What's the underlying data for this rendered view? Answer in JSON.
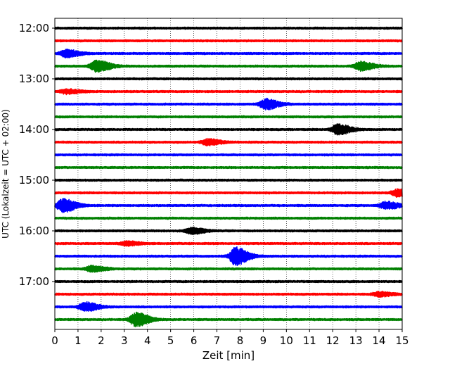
{
  "chart_data": {
    "type": "line",
    "title": "",
    "xlabel": "Zeit  [min]",
    "ylabel": "UTC (Lokalzeit = UTC + 02:00)",
    "xlim": [
      0,
      15
    ],
    "x_ticks": [
      "0",
      "1",
      "2",
      "3",
      "4",
      "5",
      "6",
      "7",
      "8",
      "9",
      "10",
      "11",
      "12",
      "13",
      "14",
      "15"
    ],
    "y_tick_labels": [
      "12:00",
      "13:00",
      "14:00",
      "15:00",
      "16:00",
      "17:00"
    ],
    "grid": "vertical dotted at each minute",
    "row_start": "12:00",
    "row_interval_minutes": 15,
    "colors": [
      "#000000",
      "#ff0000",
      "#0000ff",
      "#008000"
    ],
    "rows": [
      {
        "start": "12:00",
        "color": "#000000",
        "events": []
      },
      {
        "start": "12:15",
        "color": "#ff0000",
        "events": []
      },
      {
        "start": "12:30",
        "color": "#0000ff",
        "events": [
          {
            "t": 0.5,
            "amp": 5
          }
        ]
      },
      {
        "start": "12:45",
        "color": "#008000",
        "events": [
          {
            "t": 1.8,
            "amp": 8
          },
          {
            "t": 13.2,
            "amp": 6
          }
        ]
      },
      {
        "start": "13:00",
        "color": "#000000",
        "events": []
      },
      {
        "start": "13:15",
        "color": "#ff0000",
        "events": [
          {
            "t": 0.5,
            "amp": 3
          }
        ]
      },
      {
        "start": "13:30",
        "color": "#0000ff",
        "events": [
          {
            "t": 9.1,
            "amp": 7
          }
        ]
      },
      {
        "start": "13:45",
        "color": "#008000",
        "events": []
      },
      {
        "start": "14:00",
        "color": "#000000",
        "events": [
          {
            "t": 12.2,
            "amp": 7
          }
        ]
      },
      {
        "start": "14:15",
        "color": "#ff0000",
        "events": [
          {
            "t": 6.6,
            "amp": 4
          }
        ]
      },
      {
        "start": "14:30",
        "color": "#0000ff",
        "events": []
      },
      {
        "start": "14:45",
        "color": "#008000",
        "events": []
      },
      {
        "start": "15:00",
        "color": "#000000",
        "events": []
      },
      {
        "start": "15:15",
        "color": "#ff0000",
        "events": [
          {
            "t": 14.8,
            "amp": 5
          }
        ]
      },
      {
        "start": "15:30",
        "color": "#0000ff",
        "events": [
          {
            "t": 0.35,
            "amp": 9
          },
          {
            "t": 14.3,
            "amp": 5
          }
        ]
      },
      {
        "start": "15:45",
        "color": "#008000",
        "events": []
      },
      {
        "start": "16:00",
        "color": "#000000",
        "events": [
          {
            "t": 5.9,
            "amp": 4
          }
        ]
      },
      {
        "start": "16:15",
        "color": "#ff0000",
        "events": [
          {
            "t": 3.1,
            "amp": 3
          }
        ]
      },
      {
        "start": "16:30",
        "color": "#0000ff",
        "events": [
          {
            "t": 7.8,
            "amp": 12
          }
        ]
      },
      {
        "start": "16:45",
        "color": "#008000",
        "events": [
          {
            "t": 1.6,
            "amp": 4
          }
        ]
      },
      {
        "start": "17:00",
        "color": "#000000",
        "events": []
      },
      {
        "start": "17:15",
        "color": "#ff0000",
        "events": [
          {
            "t": 14.0,
            "amp": 3
          }
        ]
      },
      {
        "start": "17:30",
        "color": "#0000ff",
        "events": [
          {
            "t": 1.3,
            "amp": 6
          }
        ]
      },
      {
        "start": "17:45",
        "color": "#008000",
        "events": [
          {
            "t": 3.5,
            "amp": 9
          }
        ]
      }
    ]
  }
}
